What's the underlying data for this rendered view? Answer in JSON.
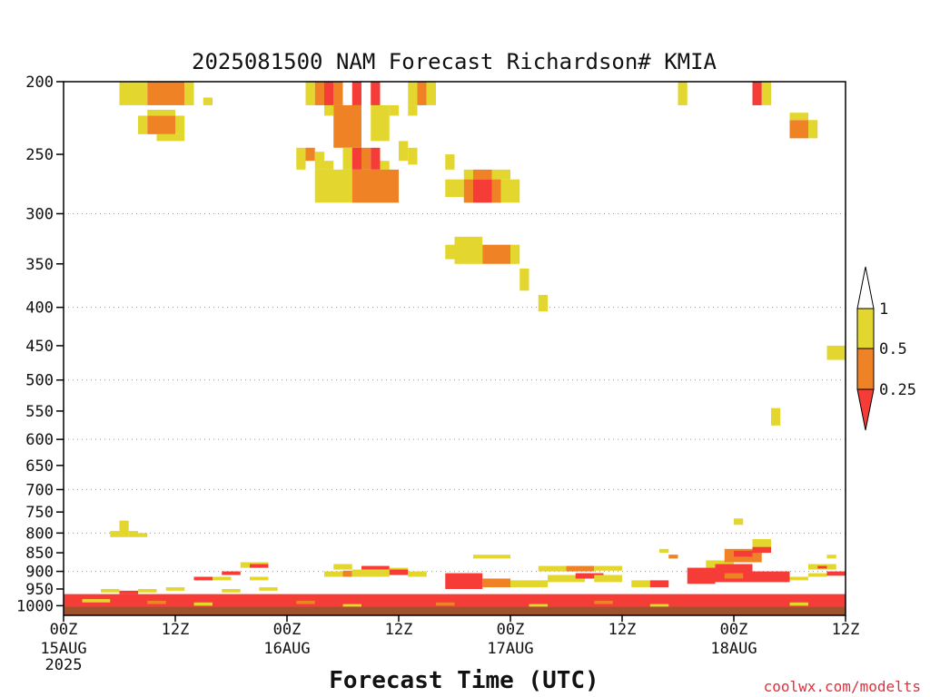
{
  "chart_data": {
    "type": "heatmap",
    "title": "2025081500 NAM Forecast Richardson# KMIA",
    "xlabel": "Forecast Time (UTC)",
    "ylabel": "",
    "credit": "coolwx.com/modelts",
    "x_range_hours": [
      0,
      84
    ],
    "y_axis": {
      "scale": "log-pressure",
      "range": [
        200,
        1030
      ],
      "ticks": [
        200,
        250,
        300,
        350,
        400,
        450,
        500,
        550,
        600,
        650,
        700,
        750,
        800,
        850,
        900,
        950,
        1000
      ],
      "gridlines_at": [
        300,
        400,
        500,
        600,
        700,
        800,
        900
      ]
    },
    "x_ticks": [
      {
        "hour": 0,
        "label": "00Z",
        "date": "15AUG",
        "year": "2025"
      },
      {
        "hour": 12,
        "label": "12Z",
        "date": "",
        "year": ""
      },
      {
        "hour": 24,
        "label": "00Z",
        "date": "16AUG",
        "year": ""
      },
      {
        "hour": 36,
        "label": "12Z",
        "date": "",
        "year": ""
      },
      {
        "hour": 48,
        "label": "00Z",
        "date": "17AUG",
        "year": ""
      },
      {
        "hour": 60,
        "label": "12Z",
        "date": "",
        "year": ""
      },
      {
        "hour": 72,
        "label": "00Z",
        "date": "18AUG",
        "year": ""
      },
      {
        "hour": 84,
        "label": "12Z",
        "date": "",
        "year": ""
      }
    ],
    "legend": {
      "placement": "right",
      "levels": [
        {
          "label": "1",
          "value": 1
        },
        {
          "label": "0.5",
          "value": 0.5
        },
        {
          "label": "0.25",
          "value": 0.25
        }
      ],
      "colors": {
        "above_1": "#ffffff",
        "between_0.5_1": "#e3d72f",
        "between_0.25_0.5": "#ef8225",
        "below_0.25": "#f53c37"
      }
    },
    "ground_color": "#a0522d",
    "cells": [
      {
        "h": 6,
        "h2": 9,
        "p": 200,
        "p2": 215,
        "cat": "0.5-1"
      },
      {
        "h": 9,
        "h2": 13,
        "p": 200,
        "p2": 215,
        "cat": "0.25-0.5"
      },
      {
        "h": 13,
        "h2": 14,
        "p": 200,
        "p2": 215,
        "cat": "0.5-1"
      },
      {
        "h": 15,
        "h2": 16,
        "p": 210,
        "p2": 215,
        "cat": "0.5-1"
      },
      {
        "h": 8,
        "h2": 9,
        "p": 222,
        "p2": 235,
        "cat": "0.5-1"
      },
      {
        "h": 9,
        "h2": 12,
        "p": 222,
        "p2": 235,
        "cat": "0.25-0.5"
      },
      {
        "h": 12,
        "h2": 13,
        "p": 222,
        "p2": 235,
        "cat": "0.5-1"
      },
      {
        "h": 9,
        "h2": 12,
        "p": 218,
        "p2": 222,
        "cat": "0.5-1"
      },
      {
        "h": 10,
        "h2": 13,
        "p": 235,
        "p2": 240,
        "cat": "0.5-1"
      },
      {
        "h": 26,
        "h2": 27,
        "p": 200,
        "p2": 215,
        "cat": "0.5-1"
      },
      {
        "h": 27,
        "h2": 28,
        "p": 200,
        "p2": 215,
        "cat": "0.25-0.5"
      },
      {
        "h": 28,
        "h2": 29,
        "p": 200,
        "p2": 215,
        "cat": "0.25-1"
      },
      {
        "h": 28,
        "h2": 29,
        "p": 200,
        "p2": 215,
        "cat": "below-0.25"
      },
      {
        "h": 29,
        "h2": 30,
        "p": 200,
        "p2": 215,
        "cat": "0.25-0.5"
      },
      {
        "h": 31,
        "h2": 32,
        "p": 200,
        "p2": 215,
        "cat": "below-0.25"
      },
      {
        "h": 33,
        "h2": 34,
        "p": 200,
        "p2": 215,
        "cat": "below-0.25"
      },
      {
        "h": 37,
        "h2": 38,
        "p": 200,
        "p2": 215,
        "cat": "0.5-1"
      },
      {
        "h": 38,
        "h2": 39,
        "p": 200,
        "p2": 215,
        "cat": "0.25-0.5"
      },
      {
        "h": 39,
        "h2": 40,
        "p": 200,
        "p2": 215,
        "cat": "0.5-1"
      },
      {
        "h": 28,
        "h2": 29,
        "p": 215,
        "p2": 222,
        "cat": "0.5-1"
      },
      {
        "h": 29,
        "h2": 32,
        "p": 215,
        "p2": 245,
        "cat": "0.25-0.5"
      },
      {
        "h": 33,
        "h2": 35,
        "p": 215,
        "p2": 240,
        "cat": "0.5-1"
      },
      {
        "h": 35,
        "h2": 36,
        "p": 215,
        "p2": 222,
        "cat": "0.5-1"
      },
      {
        "h": 37,
        "h2": 38,
        "p": 215,
        "p2": 222,
        "cat": "0.5-1"
      },
      {
        "h": 36,
        "h2": 37,
        "p": 240,
        "p2": 255,
        "cat": "0.5-1"
      },
      {
        "h": 37,
        "h2": 38,
        "p": 245,
        "p2": 258,
        "cat": "0.5-1"
      },
      {
        "h": 25,
        "h2": 26,
        "p": 245,
        "p2": 262,
        "cat": "0.5-1"
      },
      {
        "h": 26,
        "h2": 27,
        "p": 245,
        "p2": 255,
        "cat": "0.25-0.5"
      },
      {
        "h": 27,
        "h2": 28,
        "p": 248,
        "p2": 262,
        "cat": "0.5-1"
      },
      {
        "h": 28,
        "h2": 29,
        "p": 255,
        "p2": 262,
        "cat": "0.5-1"
      },
      {
        "h": 30,
        "h2": 31,
        "p": 245,
        "p2": 262,
        "cat": "0.5-1"
      },
      {
        "h": 31,
        "h2": 32,
        "p": 245,
        "p2": 262,
        "cat": "below-0.25"
      },
      {
        "h": 32,
        "h2": 33,
        "p": 245,
        "p2": 262,
        "cat": "0.25-0.5"
      },
      {
        "h": 33,
        "h2": 34,
        "p": 245,
        "p2": 262,
        "cat": "below-0.25"
      },
      {
        "h": 34,
        "h2": 35,
        "p": 255,
        "p2": 262,
        "cat": "0.5-1"
      },
      {
        "h": 27,
        "h2": 31,
        "p": 262,
        "p2": 290,
        "cat": "0.5-1"
      },
      {
        "h": 31,
        "h2": 36,
        "p": 262,
        "p2": 290,
        "cat": "0.25-0.5"
      },
      {
        "h": 41,
        "h2": 42,
        "p": 250,
        "p2": 262,
        "cat": "0.5-1"
      },
      {
        "h": 41,
        "h2": 43,
        "p": 270,
        "p2": 285,
        "cat": "0.5-1"
      },
      {
        "h": 43,
        "h2": 44,
        "p": 262,
        "p2": 270,
        "cat": "0.5-1"
      },
      {
        "h": 44,
        "h2": 46,
        "p": 262,
        "p2": 270,
        "cat": "0.25-0.5"
      },
      {
        "h": 46,
        "h2": 48,
        "p": 262,
        "p2": 270,
        "cat": "0.5-1"
      },
      {
        "h": 43,
        "h2": 44,
        "p": 270,
        "p2": 290,
        "cat": "0.25-0.5"
      },
      {
        "h": 44,
        "h2": 46,
        "p": 270,
        "p2": 290,
        "cat": "below-0.25"
      },
      {
        "h": 46,
        "h2": 47,
        "p": 270,
        "p2": 290,
        "cat": "0.25-0.5"
      },
      {
        "h": 47,
        "h2": 49,
        "p": 270,
        "p2": 290,
        "cat": "0.5-1"
      },
      {
        "h": 41,
        "h2": 42,
        "p": 330,
        "p2": 345,
        "cat": "0.5-1"
      },
      {
        "h": 42,
        "h2": 45,
        "p": 322,
        "p2": 350,
        "cat": "0.5-1"
      },
      {
        "h": 45,
        "h2": 48,
        "p": 330,
        "p2": 350,
        "cat": "0.25-0.5"
      },
      {
        "h": 48,
        "h2": 49,
        "p": 330,
        "p2": 350,
        "cat": "0.5-1"
      },
      {
        "h": 49,
        "h2": 50,
        "p": 355,
        "p2": 380,
        "cat": "0.5-1"
      },
      {
        "h": 51,
        "h2": 52,
        "p": 385,
        "p2": 405,
        "cat": "0.5-1"
      },
      {
        "h": 66,
        "h2": 67,
        "p": 200,
        "p2": 215,
        "cat": "0.5-1"
      },
      {
        "h": 74,
        "h2": 75,
        "p": 200,
        "p2": 215,
        "cat": "below-0.25"
      },
      {
        "h": 75,
        "h2": 76,
        "p": 200,
        "p2": 215,
        "cat": "0.5-1"
      },
      {
        "h": 78,
        "h2": 80,
        "p": 225,
        "p2": 238,
        "cat": "0.25-0.5"
      },
      {
        "h": 80,
        "h2": 81,
        "p": 225,
        "p2": 238,
        "cat": "0.5-1"
      },
      {
        "h": 78,
        "h2": 80,
        "p": 220,
        "p2": 225,
        "cat": "0.5-1"
      },
      {
        "h": 82,
        "h2": 84,
        "p": 450,
        "p2": 470,
        "cat": "0.5-1"
      },
      {
        "h": 76,
        "h2": 77,
        "p": 545,
        "p2": 575,
        "cat": "0.5-1"
      },
      {
        "h": 5,
        "h2": 6,
        "p": 795,
        "p2": 810,
        "cat": "0.5-1"
      },
      {
        "h": 6,
        "h2": 7,
        "p": 770,
        "p2": 810,
        "cat": "0.5-1"
      },
      {
        "h": 7,
        "h2": 8,
        "p": 795,
        "p2": 810,
        "cat": "0.5-1"
      },
      {
        "h": 8,
        "h2": 9,
        "p": 800,
        "p2": 810,
        "cat": "0.5-1"
      },
      {
        "h": 72,
        "h2": 73,
        "p": 765,
        "p2": 780,
        "cat": "0.5-1"
      },
      {
        "h": 74,
        "h2": 76,
        "p": 815,
        "p2": 840,
        "cat": "0.5-1"
      },
      {
        "h": 44,
        "h2": 48,
        "p": 855,
        "p2": 865,
        "cat": "0.5-1"
      },
      {
        "h": 64,
        "h2": 65,
        "p": 840,
        "p2": 850,
        "cat": "0.5-1"
      },
      {
        "h": 65,
        "h2": 66,
        "p": 855,
        "p2": 865,
        "cat": "0.25-0.5"
      },
      {
        "h": 19,
        "h2": 22,
        "p": 875,
        "p2": 890,
        "cat": "0.5-1"
      },
      {
        "h": 20,
        "h2": 22,
        "p": 880,
        "p2": 890,
        "cat": "below-0.25"
      },
      {
        "h": 29,
        "h2": 31,
        "p": 880,
        "p2": 895,
        "cat": "0.5-1"
      },
      {
        "h": 32,
        "h2": 35,
        "p": 885,
        "p2": 895,
        "cat": "below-0.25"
      },
      {
        "h": 35,
        "h2": 37,
        "p": 890,
        "p2": 898,
        "cat": "0.5-1"
      },
      {
        "h": 51,
        "h2": 54,
        "p": 885,
        "p2": 900,
        "cat": "0.5-1"
      },
      {
        "h": 54,
        "h2": 57,
        "p": 885,
        "p2": 900,
        "cat": "0.25-0.5"
      },
      {
        "h": 57,
        "h2": 60,
        "p": 885,
        "p2": 898,
        "cat": "0.5-1"
      },
      {
        "h": 69,
        "h2": 72,
        "p": 870,
        "p2": 890,
        "cat": "0.5-1"
      },
      {
        "h": 71,
        "h2": 75,
        "p": 840,
        "p2": 875,
        "cat": "0.25-0.5"
      },
      {
        "h": 72,
        "h2": 74,
        "p": 845,
        "p2": 860,
        "cat": "below-0.25"
      },
      {
        "h": 74,
        "h2": 76,
        "p": 835,
        "p2": 850,
        "cat": "below-0.25"
      },
      {
        "h": 80,
        "h2": 83,
        "p": 880,
        "p2": 895,
        "cat": "0.5-1"
      },
      {
        "h": 81,
        "h2": 82,
        "p": 885,
        "p2": 892,
        "cat": "below-0.25"
      },
      {
        "h": 82,
        "h2": 83,
        "p": 855,
        "p2": 865,
        "cat": "0.5-1"
      },
      {
        "h": 67,
        "h2": 70,
        "p": 890,
        "p2": 935,
        "cat": "below-0.25"
      },
      {
        "h": 70,
        "h2": 74,
        "p": 880,
        "p2": 930,
        "cat": "below-0.25"
      },
      {
        "h": 71,
        "h2": 73,
        "p": 905,
        "p2": 920,
        "cat": "0.25-0.5"
      },
      {
        "h": 28,
        "h2": 30,
        "p": 900,
        "p2": 915,
        "cat": "0.5-1"
      },
      {
        "h": 30,
        "h2": 31,
        "p": 898,
        "p2": 915,
        "cat": "0.25-0.5"
      },
      {
        "h": 31,
        "h2": 35,
        "p": 895,
        "p2": 915,
        "cat": "0.5-1"
      },
      {
        "h": 35,
        "h2": 37,
        "p": 895,
        "p2": 910,
        "cat": "below-0.25"
      },
      {
        "h": 37,
        "h2": 39,
        "p": 900,
        "p2": 915,
        "cat": "0.5-1"
      },
      {
        "h": 17,
        "h2": 19,
        "p": 900,
        "p2": 910,
        "cat": "below-0.25"
      },
      {
        "h": 14,
        "h2": 16,
        "p": 915,
        "p2": 925,
        "cat": "below-0.25"
      },
      {
        "h": 16,
        "h2": 18,
        "p": 915,
        "p2": 925,
        "cat": "0.5-1"
      },
      {
        "h": 20,
        "h2": 22,
        "p": 915,
        "p2": 925,
        "cat": "0.5-1"
      },
      {
        "h": 41,
        "h2": 45,
        "p": 905,
        "p2": 950,
        "cat": "below-0.25"
      },
      {
        "h": 45,
        "h2": 48,
        "p": 920,
        "p2": 945,
        "cat": "0.25-0.5"
      },
      {
        "h": 48,
        "h2": 52,
        "p": 925,
        "p2": 945,
        "cat": "0.5-1"
      },
      {
        "h": 52,
        "h2": 56,
        "p": 910,
        "p2": 930,
        "cat": "0.5-1"
      },
      {
        "h": 55,
        "h2": 58,
        "p": 905,
        "p2": 920,
        "cat": "below-0.25"
      },
      {
        "h": 57,
        "h2": 60,
        "p": 910,
        "p2": 930,
        "cat": "0.5-1"
      },
      {
        "h": 61,
        "h2": 63,
        "p": 925,
        "p2": 945,
        "cat": "0.5-1"
      },
      {
        "h": 63,
        "h2": 65,
        "p": 925,
        "p2": 945,
        "cat": "below-0.25"
      },
      {
        "h": 74,
        "h2": 78,
        "p": 900,
        "p2": 930,
        "cat": "below-0.25"
      },
      {
        "h": 78,
        "h2": 80,
        "p": 915,
        "p2": 925,
        "cat": "0.5-1"
      },
      {
        "h": 80,
        "h2": 82,
        "p": 905,
        "p2": 915,
        "cat": "0.5-1"
      },
      {
        "h": 82,
        "h2": 84,
        "p": 900,
        "p2": 912,
        "cat": "below-0.25"
      },
      {
        "h": 4,
        "h2": 6,
        "p": 950,
        "p2": 960,
        "cat": "0.5-1"
      },
      {
        "h": 6,
        "h2": 8,
        "p": 955,
        "p2": 965,
        "cat": "below-0.25"
      },
      {
        "h": 8,
        "h2": 10,
        "p": 950,
        "p2": 960,
        "cat": "0.5-1"
      },
      {
        "h": 11,
        "h2": 13,
        "p": 945,
        "p2": 955,
        "cat": "0.5-1"
      },
      {
        "h": 17,
        "h2": 19,
        "p": 950,
        "p2": 960,
        "cat": "0.5-1"
      },
      {
        "h": 21,
        "h2": 23,
        "p": 945,
        "p2": 955,
        "cat": "0.5-1"
      },
      {
        "h": 0,
        "h2": 84,
        "p": 965,
        "p2": 1003,
        "cat": "below-0.25"
      },
      {
        "h": 2,
        "h2": 5,
        "p": 980,
        "p2": 990,
        "cat": "0.5-1"
      },
      {
        "h": 9,
        "h2": 11,
        "p": 985,
        "p2": 995,
        "cat": "0.25-0.5"
      },
      {
        "h": 14,
        "h2": 16,
        "p": 990,
        "p2": 1000,
        "cat": "0.5-1"
      },
      {
        "h": 25,
        "h2": 27,
        "p": 985,
        "p2": 995,
        "cat": "0.25-0.5"
      },
      {
        "h": 30,
        "h2": 32,
        "p": 995,
        "p2": 1003,
        "cat": "0.5-1"
      },
      {
        "h": 40,
        "h2": 42,
        "p": 990,
        "p2": 1000,
        "cat": "0.25-0.5"
      },
      {
        "h": 50,
        "h2": 52,
        "p": 995,
        "p2": 1003,
        "cat": "0.5-1"
      },
      {
        "h": 57,
        "h2": 59,
        "p": 985,
        "p2": 995,
        "cat": "0.25-0.5"
      },
      {
        "h": 63,
        "h2": 65,
        "p": 995,
        "p2": 1003,
        "cat": "0.5-1"
      },
      {
        "h": 78,
        "h2": 80,
        "p": 990,
        "p2": 1000,
        "cat": "0.5-1"
      }
    ]
  }
}
